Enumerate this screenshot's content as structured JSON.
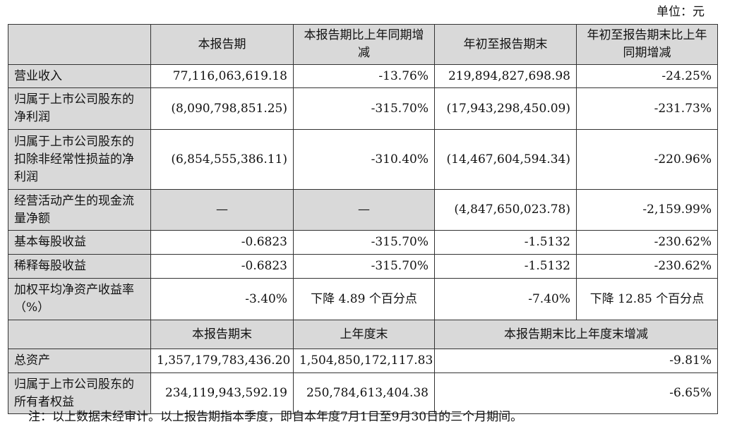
{
  "unit_label": "单位：元",
  "header": {
    "col1": "",
    "col2": "本报告期",
    "col3": "本报告期比上年同期增减",
    "col4": "年初至报告期末",
    "col5": "年初至报告期末比上年同期增减"
  },
  "rows": [
    {
      "label": "营业收入",
      "c1": "77,116,063,619.18",
      "c2": "-13.76%",
      "c3": "219,894,827,698.98",
      "c4": "-24.25%"
    },
    {
      "label": "归属于上市公司股东的净利润",
      "c1": "(8,090,798,851.25)",
      "c2": "-315.70%",
      "c3": "(17,943,298,450.09)",
      "c4": "-231.73%"
    },
    {
      "label": "归属于上市公司股东的扣除非经常性损益的净利润",
      "c1": "(6,854,555,386.11)",
      "c2": "-310.40%",
      "c3": "(14,467,604,594.34)",
      "c4": "-220.96%"
    },
    {
      "label": "经营活动产生的现金流量净额",
      "c1": "—",
      "c2": "—",
      "c3": "(4,847,650,023.78)",
      "c4": "-2,159.99%"
    },
    {
      "label": "基本每股收益",
      "c1": "-0.6823",
      "c2": "-315.70%",
      "c3": "-1.5132",
      "c4": "-230.62%"
    },
    {
      "label": "稀释每股收益",
      "c1": "-0.6823",
      "c2": "-315.70%",
      "c3": "-1.5132",
      "c4": "-230.62%"
    },
    {
      "label": "加权平均净资产收益率（%）",
      "c1": "-3.40%",
      "c2": "下降 4.89 个百分点",
      "c3": "-7.40%",
      "c4": "下降 12.85 个百分点"
    }
  ],
  "header2": {
    "col2": "本报告期末",
    "col3": "上年度末",
    "col4": "本报告期末比上年度末增减"
  },
  "rows2": [
    {
      "label": "总资产",
      "c1": "1,357,179,783,436.20",
      "c2": "1,504,850,172,117.83",
      "c3": "-9.81%"
    },
    {
      "label": "归属于上市公司股东的所有者权益",
      "c1": "234,119,943,592.19",
      "c2": "250,784,613,404.38",
      "c3": "-6.65%"
    }
  ],
  "footer_partial": "注：以上数据未经审计。以上报告期指本季度，即自本年度7月1日至9月30日的三个月期间。"
}
